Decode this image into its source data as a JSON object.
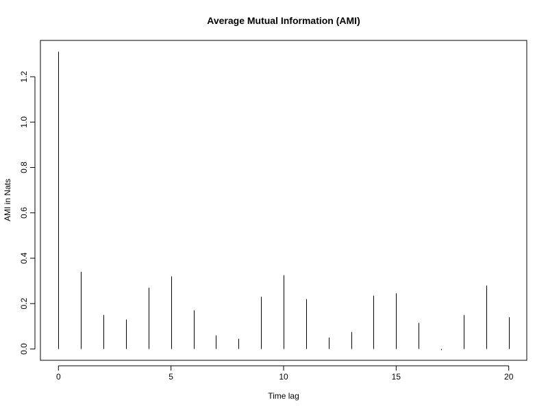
{
  "chart_data": {
    "type": "bar",
    "style": "vertical lines (histogram-style spikes)",
    "title": "Average Mutual Information (AMI)",
    "xlabel": "Time lag",
    "ylabel": "AMI in Nats",
    "x": [
      0,
      1,
      2,
      3,
      4,
      5,
      6,
      7,
      8,
      9,
      10,
      11,
      12,
      13,
      14,
      15,
      16,
      17,
      18,
      19,
      20
    ],
    "values": [
      1.31,
      0.34,
      0.15,
      0.13,
      0.27,
      0.32,
      0.17,
      0.06,
      0.045,
      0.23,
      0.325,
      0.22,
      0.05,
      0.075,
      0.235,
      0.245,
      0.115,
      -0.005,
      0.15,
      0.28,
      0.14
    ],
    "xlim": [
      -0.8,
      20.8
    ],
    "ylim": [
      -0.05,
      1.36
    ],
    "xticks": [
      0,
      5,
      10,
      15,
      20
    ],
    "xtick_labels": [
      "0",
      "5",
      "10",
      "15",
      "20"
    ],
    "yticks": [
      0.0,
      0.2,
      0.4,
      0.6,
      0.8,
      1.0,
      1.2
    ],
    "ytick_labels": [
      "0.0",
      "0.2",
      "0.4",
      "0.6",
      "0.8",
      "1.0",
      "1.2"
    ],
    "grid": false,
    "colors": {
      "line": "#000000",
      "background": "#ffffff"
    }
  }
}
